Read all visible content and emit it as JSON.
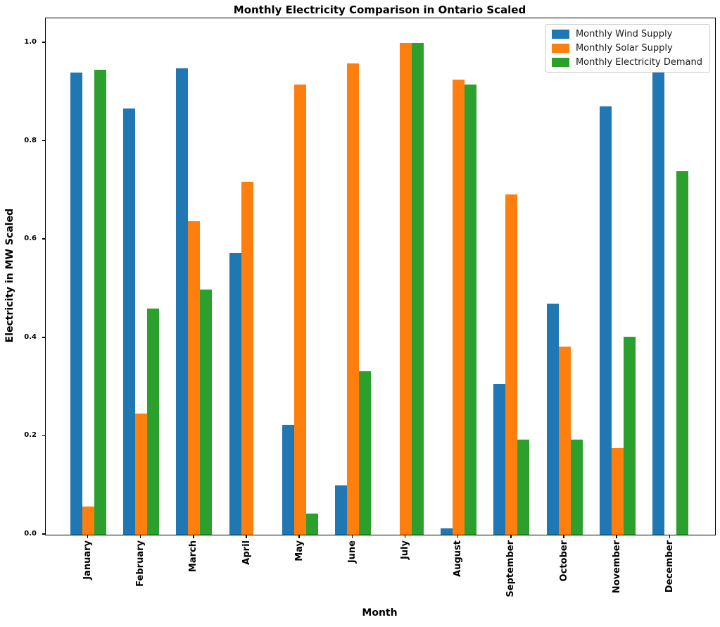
{
  "chart_data": {
    "type": "bar",
    "title": "Monthly Electricity Comparison in Ontario Scaled",
    "xlabel": "Month",
    "ylabel": "Electricity in MW Scaled",
    "categories": [
      "January",
      "February",
      "March",
      "April",
      "May",
      "June",
      "July",
      "August",
      "September",
      "October",
      "November",
      "December"
    ],
    "series": [
      {
        "name": "Monthly Wind Supply",
        "color": "#1f77b4",
        "values": [
          0.94,
          0.866,
          0.948,
          0.573,
          0.223,
          0.1,
          0.0,
          0.013,
          0.307,
          0.47,
          0.871,
          1.0
        ]
      },
      {
        "name": "Monthly Solar Supply",
        "color": "#ff7f0e",
        "values": [
          0.057,
          0.247,
          0.637,
          0.718,
          0.915,
          0.959,
          1.0,
          0.925,
          0.692,
          0.383,
          0.176,
          0.0
        ]
      },
      {
        "name": "Monthly Electricity Demand",
        "color": "#2ca02c",
        "values": [
          0.946,
          0.46,
          0.499,
          0.0,
          0.043,
          0.332,
          1.0,
          0.916,
          0.194,
          0.193,
          0.402,
          0.739
        ]
      }
    ],
    "ylim": [
      0,
      1.05
    ],
    "yticks": [
      0.0,
      0.2,
      0.4,
      0.6,
      0.8,
      1.0
    ],
    "legend_position": "upper right",
    "grid": false,
    "background_color": "#ffffff",
    "spine_color": "#000000"
  }
}
